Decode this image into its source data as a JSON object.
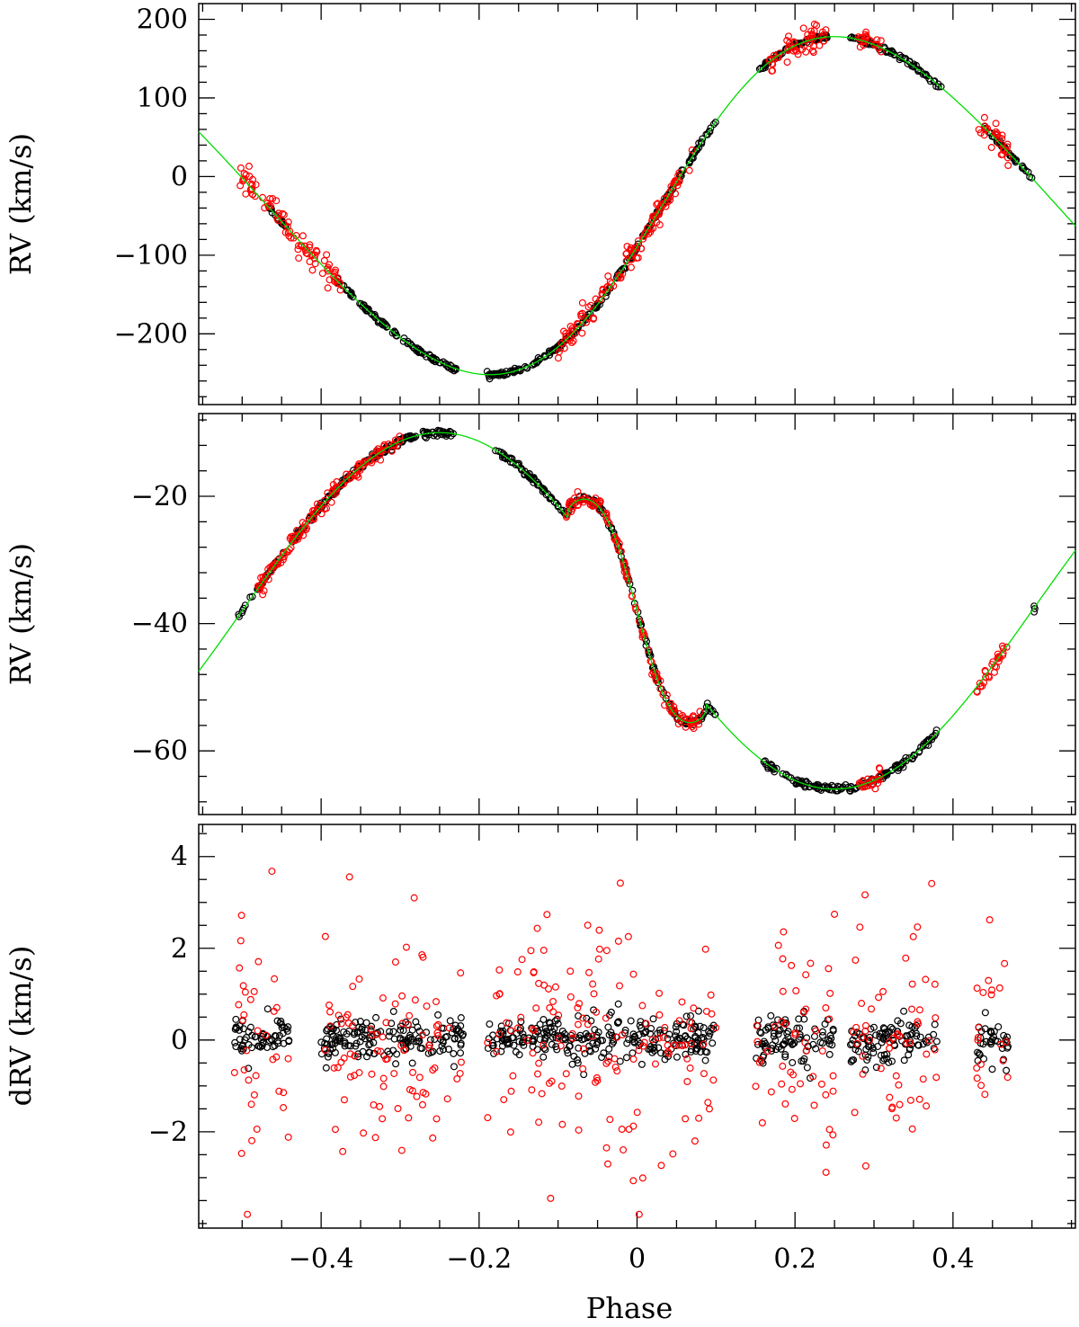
{
  "chart_data": [
    {
      "type": "scatter",
      "panel": "top",
      "title": "",
      "xlabel": "",
      "ylabel": "RV  (km/s)",
      "xlim": [
        -0.555,
        0.555
      ],
      "ylim": [
        -290,
        220
      ],
      "yticks_major": [
        -200,
        -100,
        0,
        100,
        200
      ],
      "ytick_labels": [
        "−200",
        "−100",
        "0",
        "100",
        "200"
      ],
      "grid": false,
      "colors": {
        "model": "#00dd00",
        "primary_points": "#000000",
        "secondary_points": "#ff0000"
      },
      "model": {
        "kind": "keplerian",
        "gamma": -37,
        "K": 215,
        "e": 0.1,
        "omega_deg": 270,
        "phase_peak": 0.25
      },
      "series": [
        {
          "role": "black-points",
          "color": "#000000",
          "phase_ranges": [
            [
              -0.47,
              -0.445
            ],
            [
              -0.38,
              -0.228
            ],
            [
              -0.19,
              0.1
            ],
            [
              0.155,
              0.245
            ],
            [
              0.27,
              0.385
            ],
            [
              0.44,
              0.5
            ]
          ]
        },
        {
          "role": "red-points",
          "color": "#ff0000",
          "phase_ranges": [
            [
              -0.505,
              -0.375
            ],
            [
              -0.1,
              0.07
            ],
            [
              0.165,
              0.24
            ],
            [
              0.28,
              0.31
            ],
            [
              0.43,
              0.47
            ]
          ]
        }
      ]
    },
    {
      "type": "scatter",
      "panel": "middle",
      "title": "",
      "xlabel": "",
      "ylabel": "RV  (km/s)",
      "xlim": [
        -0.555,
        0.555
      ],
      "ylim": [
        -70,
        -7
      ],
      "yticks_major": [
        -60,
        -40,
        -20
      ],
      "ytick_labels": [
        "−60",
        "−40",
        "−20"
      ],
      "grid": false,
      "model": {
        "kind": "sinusoid-plus-rm",
        "gamma": -38,
        "K": 28,
        "phase_peak": -0.25,
        "rm_amplitude": 16
      },
      "series": [
        {
          "role": "black-points",
          "color": "#000000",
          "phase_ranges": [
            [
              -0.505,
              -0.23
            ],
            [
              -0.18,
              0.1
            ],
            [
              0.16,
              0.38
            ],
            [
              0.5,
              0.5
            ]
          ]
        },
        {
          "role": "red-points",
          "color": "#ff0000",
          "phase_ranges": [
            [
              -0.48,
              -0.3
            ],
            [
              -0.09,
              0.08
            ],
            [
              0.28,
              0.31
            ],
            [
              0.43,
              0.47
            ]
          ]
        }
      ]
    },
    {
      "type": "scatter",
      "panel": "bottom",
      "title": "",
      "xlabel": "Phase",
      "ylabel": "dRV  (km/s)",
      "xlim": [
        -0.555,
        0.555
      ],
      "ylim": [
        -4.1,
        4.7
      ],
      "xticks_major": [
        -0.4,
        -0.2,
        0,
        0.2,
        0.4
      ],
      "xtick_labels": [
        "−0.4",
        "−0.2",
        "0",
        "0.2",
        "0.4"
      ],
      "yticks_major": [
        -2,
        0,
        2,
        4
      ],
      "ytick_labels": [
        "−2",
        "0",
        "2",
        "4"
      ],
      "grid": false,
      "series": [
        {
          "role": "black-residuals",
          "color": "#000000",
          "scatter_sigma": 0.25,
          "phase_ranges": [
            [
              -0.51,
              -0.44
            ],
            [
              -0.4,
              -0.22
            ],
            [
              -0.19,
              0.1
            ],
            [
              0.15,
              0.25
            ],
            [
              0.27,
              0.38
            ],
            [
              0.43,
              0.47
            ]
          ]
        },
        {
          "role": "red-residuals",
          "color": "#ff0000",
          "scatter_sigma": 1.3,
          "phase_ranges": [
            [
              -0.51,
              -0.44
            ],
            [
              -0.4,
              -0.22
            ],
            [
              -0.19,
              0.1
            ],
            [
              0.15,
              0.25
            ],
            [
              0.27,
              0.38
            ],
            [
              0.43,
              0.47
            ]
          ]
        }
      ]
    }
  ]
}
